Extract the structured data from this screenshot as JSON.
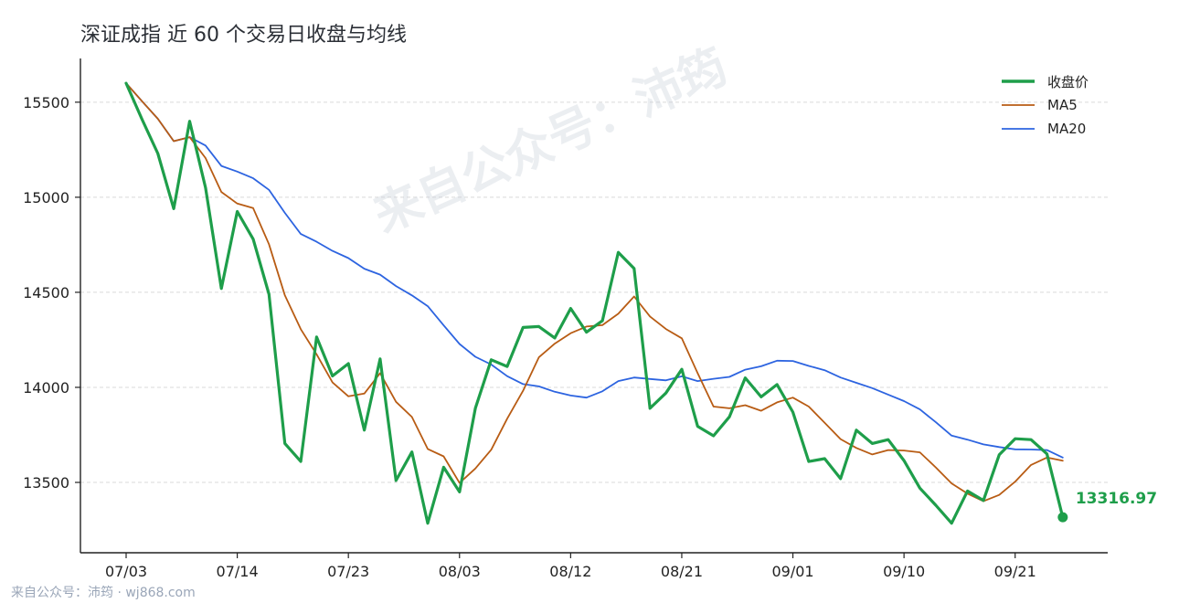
{
  "title": "深证成指 近 60 个交易日收盘与均线",
  "watermark": "来自公众号：沛筠",
  "footer": "来自公众号：沛筠 · wj868.com",
  "chart_data": {
    "type": "line",
    "title": "深证成指 近 60 个交易日收盘与均线",
    "xlabel": "",
    "ylabel": "",
    "ylim": [
      13130,
      15730
    ],
    "yticks": [
      13500,
      14000,
      14500,
      15000,
      15500
    ],
    "x_tick_labels": [
      {
        "index": 0,
        "label": "07/03"
      },
      {
        "index": 7,
        "label": "07/14"
      },
      {
        "index": 14,
        "label": "07/23"
      },
      {
        "index": 21,
        "label": "08/03"
      },
      {
        "index": 28,
        "label": "08/12"
      },
      {
        "index": 35,
        "label": "08/21"
      },
      {
        "index": 42,
        "label": "09/01"
      },
      {
        "index": 49,
        "label": "09/10"
      },
      {
        "index": 56,
        "label": "09/21"
      }
    ],
    "grid": true,
    "legend_position": "top-right",
    "series": [
      {
        "name": "收盘价",
        "color": "#1e9e4a",
        "values": [
          15600,
          15410,
          15230,
          14940,
          15400,
          15050,
          14520,
          14925,
          14780,
          14490,
          13705,
          13610,
          14265,
          14060,
          14125,
          13775,
          14150,
          13510,
          13660,
          13285,
          13580,
          13450,
          13890,
          14145,
          14110,
          14315,
          14320,
          14260,
          14415,
          14290,
          14350,
          14710,
          14625,
          13890,
          13970,
          14095,
          13795,
          13745,
          13845,
          14050,
          13950,
          14015,
          13870,
          13610,
          13625,
          13520,
          13775,
          13705,
          13725,
          13615,
          13470,
          13380,
          13285,
          13455,
          13405,
          13645,
          13730,
          13725,
          13650,
          13316.97
        ]
      },
      {
        "name": "MA5",
        "color": "#b85c14",
        "values": [
          15600,
          15505,
          15413,
          15295,
          15316,
          15206,
          15028,
          14967,
          14943,
          14753,
          14484,
          14306,
          14174,
          14026,
          13953,
          13967,
          14075,
          13924,
          13844,
          13676,
          13637,
          13497,
          13573,
          13672,
          13835,
          13982,
          14158,
          14230,
          14285,
          14320,
          14327,
          14387,
          14478,
          14373,
          14307,
          14258,
          14075,
          13899,
          13890,
          13906,
          13877,
          13921,
          13946,
          13899,
          13814,
          13728,
          13681,
          13647,
          13670,
          13668,
          13658,
          13579,
          13495,
          13441,
          13401,
          13434,
          13504,
          13592,
          13631,
          13614
        ]
      },
      {
        "name": "MA20",
        "color": "#2d64e0",
        "values": [
          15600,
          15505,
          15413,
          15295,
          15316,
          15272,
          15165,
          15135,
          15100,
          15039,
          14918,
          14807,
          14766,
          14718,
          14680,
          14624,
          14593,
          14533,
          14484,
          14427,
          14326,
          14228,
          14161,
          14120,
          14059,
          14017,
          14005,
          13977,
          13957,
          13946,
          13979,
          14033,
          14052,
          14044,
          14037,
          14058,
          14033,
          14045,
          14055,
          14093,
          14111,
          14140,
          14139,
          14113,
          14090,
          14052,
          14024,
          13996,
          13962,
          13928,
          13884,
          13817,
          13746,
          13725,
          13700,
          13686,
          13674,
          13673,
          13670,
          13631
        ]
      }
    ],
    "last_value_label": "13316.97"
  }
}
